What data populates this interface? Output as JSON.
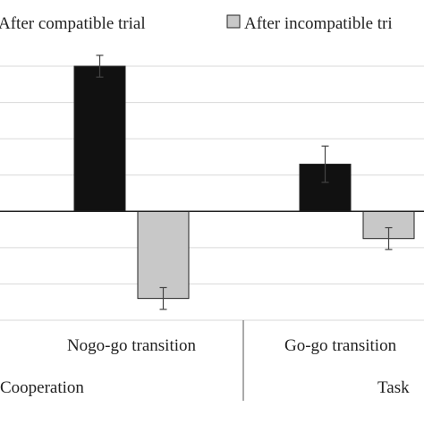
{
  "chart_data": {
    "type": "bar",
    "title": "",
    "xlabel": "",
    "ylabel": "",
    "ylim": [
      -3,
      4
    ],
    "grid": true,
    "legend_position": "top",
    "categories": [
      "Nogo-go transition",
      "Go-go transition"
    ],
    "groups": [
      "Cooperation",
      "Task"
    ],
    "series": [
      {
        "name": "After compatible trial",
        "color": "#111111",
        "values": [
          4.0,
          1.3
        ],
        "errors": [
          0.3,
          0.5
        ]
      },
      {
        "name": "After incompatible tri",
        "color": "#c8c8c8",
        "values": [
          -2.4,
          -0.75
        ],
        "errors": [
          0.3,
          0.3
        ]
      }
    ]
  }
}
